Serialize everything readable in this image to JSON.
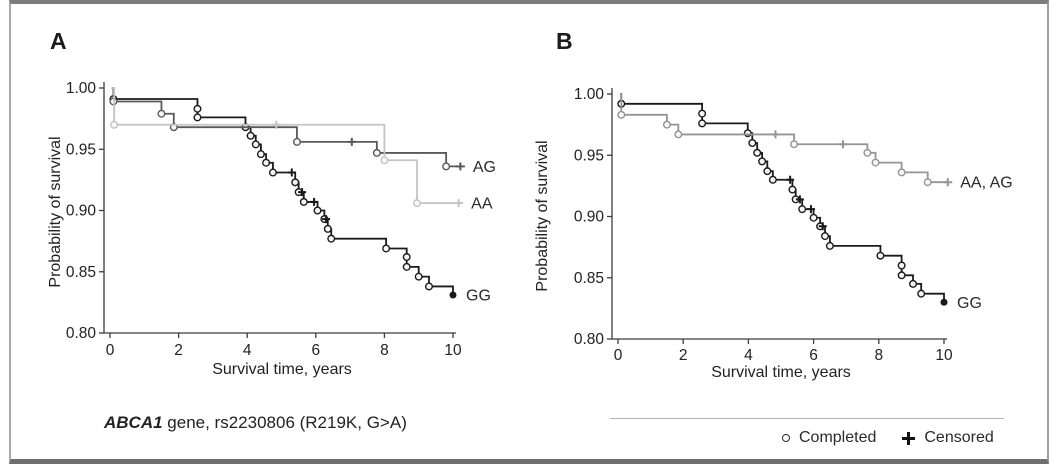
{
  "figure": {
    "panel_a_letter": "A",
    "panel_b_letter": "B",
    "caption_gene": "ABCA1",
    "caption_rest": " gene, rs2230806 (R219K, G>A)",
    "legend": {
      "completed": "Completed",
      "censored": "Censored"
    }
  },
  "chart_data": [
    {
      "type": "line",
      "subtype": "kaplan_meier_step",
      "panel": "A",
      "title": "",
      "xlabel": "Survival time, years",
      "ylabel": "Probability of survival",
      "xticks": [
        0,
        2,
        4,
        6,
        8,
        10
      ],
      "ytick_labels": [
        "1.00",
        "0.95",
        "0.90",
        "0.85",
        "0.80"
      ],
      "ytick_values": [
        1.0,
        0.95,
        0.9,
        0.85,
        0.8
      ],
      "xlim": [
        0,
        10.6
      ],
      "ylim": [
        0.8,
        1.005
      ],
      "grid": false,
      "legend_position": "right-of-curve-ends",
      "series": [
        {
          "name": "GG",
          "color": "#1a1a1a",
          "end_marker": "dot",
          "end_x": 10.0,
          "start": [
            0.08,
            1.0
          ],
          "steps": [
            [
              0.1,
              0.991
            ],
            [
              2.55,
              0.983
            ],
            [
              2.55,
              0.976
            ],
            [
              3.95,
              0.968
            ],
            [
              4.1,
              0.961
            ],
            [
              4.25,
              0.954
            ],
            [
              4.4,
              0.946
            ],
            [
              4.55,
              0.939
            ],
            [
              4.75,
              0.931
            ],
            [
              5.4,
              0.923
            ],
            [
              5.5,
              0.915
            ],
            [
              5.65,
              0.907
            ],
            [
              6.05,
              0.9
            ],
            [
              6.25,
              0.893
            ],
            [
              6.35,
              0.885
            ],
            [
              6.45,
              0.877
            ],
            [
              8.05,
              0.869
            ],
            [
              8.65,
              0.862
            ],
            [
              8.65,
              0.854
            ],
            [
              9.0,
              0.846
            ],
            [
              9.3,
              0.838
            ],
            [
              10.0,
              0.831
            ]
          ],
          "censored": [
            [
              5.3,
              0.931
            ],
            [
              5.6,
              0.915
            ],
            [
              5.95,
              0.907
            ],
            [
              6.3,
              0.893
            ]
          ]
        },
        {
          "name": "AG",
          "color": "#595959",
          "end_marker": "plus",
          "end_x": 10.2,
          "start": [
            0.05,
            1.0
          ],
          "steps": [
            [
              0.1,
              0.989
            ],
            [
              1.5,
              0.979
            ],
            [
              1.86,
              0.968
            ],
            [
              5.45,
              0.956
            ],
            [
              7.78,
              0.947
            ],
            [
              9.8,
              0.936
            ]
          ],
          "censored": [
            [
              7.05,
              0.956
            ]
          ]
        },
        {
          "name": "AA",
          "color": "#c3c3c3",
          "end_marker": "plus",
          "end_x": 10.15,
          "start": [
            0.06,
            1.0
          ],
          "steps": [
            [
              0.12,
              0.97
            ],
            [
              8.0,
              0.941
            ],
            [
              8.95,
              0.906
            ]
          ],
          "censored": [
            [
              4.85,
              0.97
            ]
          ]
        }
      ]
    },
    {
      "type": "line",
      "subtype": "kaplan_meier_step",
      "panel": "B",
      "title": "",
      "xlabel": "Survival time, years",
      "ylabel": "Probability of survival",
      "xticks": [
        0,
        2,
        4,
        6,
        8,
        10
      ],
      "ytick_labels": [
        "1.00",
        "0.95",
        "0.90",
        "0.85",
        "0.80"
      ],
      "ytick_values": [
        1.0,
        0.95,
        0.9,
        0.85,
        0.8
      ],
      "xlim": [
        0,
        10.6
      ],
      "ylim": [
        0.8,
        1.005
      ],
      "grid": false,
      "legend_position": "right-of-curve-ends",
      "series": [
        {
          "name": "GG",
          "color": "#1a1a1a",
          "end_marker": "dot",
          "end_x": 10.0,
          "start": [
            0.08,
            1.0
          ],
          "steps": [
            [
              0.1,
              0.992
            ],
            [
              2.58,
              0.984
            ],
            [
              2.58,
              0.976
            ],
            [
              3.98,
              0.968
            ],
            [
              4.12,
              0.96
            ],
            [
              4.27,
              0.952
            ],
            [
              4.42,
              0.945
            ],
            [
              4.58,
              0.937
            ],
            [
              4.75,
              0.93
            ],
            [
              5.35,
              0.922
            ],
            [
              5.45,
              0.914
            ],
            [
              5.65,
              0.906
            ],
            [
              6.0,
              0.899
            ],
            [
              6.2,
              0.892
            ],
            [
              6.35,
              0.884
            ],
            [
              6.5,
              0.876
            ],
            [
              8.05,
              0.868
            ],
            [
              8.7,
              0.86
            ],
            [
              8.7,
              0.852
            ],
            [
              9.05,
              0.845
            ],
            [
              9.3,
              0.837
            ],
            [
              10.0,
              0.83
            ]
          ],
          "censored": [
            [
              5.28,
              0.93
            ],
            [
              5.58,
              0.914
            ],
            [
              5.92,
              0.906
            ],
            [
              6.28,
              0.892
            ]
          ]
        },
        {
          "name": "AA, AG",
          "color": "#949494",
          "end_marker": "plus",
          "end_x": 10.1,
          "start": [
            0.06,
            1.0
          ],
          "steps": [
            [
              0.1,
              0.983
            ],
            [
              1.5,
              0.975
            ],
            [
              1.85,
              0.967
            ],
            [
              5.4,
              0.959
            ],
            [
              7.65,
              0.952
            ],
            [
              7.9,
              0.944
            ],
            [
              8.7,
              0.936
            ],
            [
              9.5,
              0.928
            ]
          ],
          "censored": [
            [
              4.83,
              0.967
            ],
            [
              6.9,
              0.959
            ]
          ]
        }
      ]
    }
  ]
}
